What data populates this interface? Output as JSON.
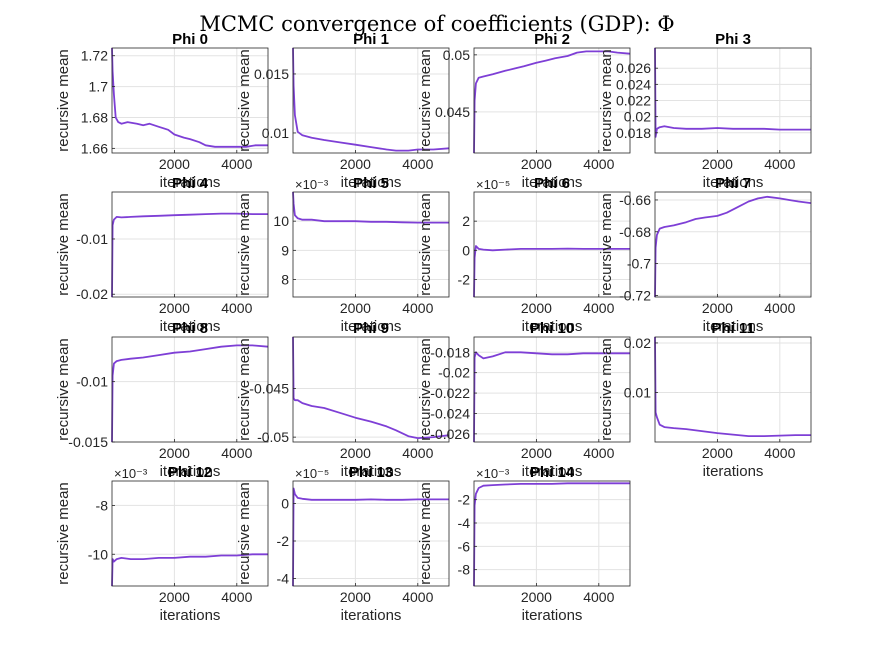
{
  "figure": {
    "title": "MCMC convergence of coefficients (GDP): Φ",
    "line_color": "#7e3fd6",
    "grid_color": "#e3e3e3",
    "axis_color": "#262626"
  },
  "chart_data": [
    {
      "type": "line",
      "title": "Phi 0",
      "xlabel": "iterations",
      "ylabel": "recursive mean",
      "xlim": [
        0,
        5000
      ],
      "ylim": [
        1.657,
        1.725
      ],
      "xticks": [
        2000,
        4000
      ],
      "xtick_labels": [
        "2000",
        "4000"
      ],
      "yticks": [
        1.66,
        1.68,
        1.7,
        1.72
      ],
      "ytick_labels": [
        "1.66",
        "1.68",
        "1.7",
        "1.72"
      ],
      "exponent": "",
      "series": [
        {
          "x": [
            0,
            20,
            60,
            120,
            200,
            300,
            500,
            800,
            1000,
            1200,
            1500,
            1800,
            2000,
            2300,
            2500,
            2800,
            3000,
            3300,
            3500,
            3800,
            4000,
            4300,
            4600,
            5000
          ],
          "y": [
            1.725,
            1.71,
            1.695,
            1.68,
            1.677,
            1.676,
            1.677,
            1.676,
            1.675,
            1.676,
            1.674,
            1.672,
            1.669,
            1.667,
            1.666,
            1.664,
            1.662,
            1.661,
            1.661,
            1.661,
            1.661,
            1.661,
            1.662,
            1.662
          ]
        }
      ]
    },
    {
      "type": "line",
      "title": "Phi 1",
      "xlabel": "iterations",
      "ylabel": "recursive mean",
      "xlim": [
        0,
        5000
      ],
      "ylim": [
        0.0083,
        0.0172
      ],
      "xticks": [
        2000,
        4000
      ],
      "xtick_labels": [
        "2000",
        "4000"
      ],
      "yticks": [
        0.01,
        0.015
      ],
      "ytick_labels": [
        "0.01",
        "0.015"
      ],
      "exponent": "",
      "series": [
        {
          "x": [
            0,
            20,
            60,
            150,
            300,
            600,
            1000,
            1500,
            2000,
            2500,
            3000,
            3300,
            3700,
            4000,
            4500,
            5000
          ],
          "y": [
            0.0172,
            0.014,
            0.0115,
            0.0101,
            0.0098,
            0.0096,
            0.0094,
            0.0092,
            0.009,
            0.0088,
            0.0086,
            0.0085,
            0.0085,
            0.0086,
            0.0086,
            0.0087
          ]
        }
      ]
    },
    {
      "type": "line",
      "title": "Phi 2",
      "xlabel": "iterations",
      "ylabel": "recursive mean",
      "xlim": [
        0,
        5000
      ],
      "ylim": [
        0.0414,
        0.0506
      ],
      "xticks": [
        2000,
        4000
      ],
      "xtick_labels": [
        "2000",
        "4000"
      ],
      "yticks": [
        0.045,
        0.05
      ],
      "ytick_labels": [
        "0.045",
        "0.05"
      ],
      "exponent": "",
      "series": [
        {
          "x": [
            0,
            20,
            60,
            150,
            300,
            600,
            1000,
            1300,
            1600,
            2000,
            2300,
            2600,
            3000,
            3300,
            3600,
            4000,
            4300,
            4600,
            5000
          ],
          "y": [
            0.0414,
            0.046,
            0.0475,
            0.048,
            0.0481,
            0.0483,
            0.0486,
            0.0488,
            0.049,
            0.0493,
            0.0495,
            0.0497,
            0.0499,
            0.0502,
            0.0503,
            0.0503,
            0.0503,
            0.0502,
            0.0501
          ]
        }
      ]
    },
    {
      "type": "line",
      "title": "Phi 3",
      "xlabel": "iterations",
      "ylabel": "recursive mean",
      "xlim": [
        0,
        5000
      ],
      "ylim": [
        0.0155,
        0.0285
      ],
      "xticks": [
        2000,
        4000
      ],
      "xtick_labels": [
        "2000",
        "4000"
      ],
      "yticks": [
        0.018,
        0.02,
        0.022,
        0.024,
        0.026
      ],
      "ytick_labels": [
        "0.018",
        "0.02",
        "0.022",
        "0.024",
        "0.026"
      ],
      "exponent": "",
      "series": [
        {
          "x": [
            0,
            20,
            60,
            150,
            300,
            600,
            1000,
            1500,
            2000,
            2500,
            3000,
            3500,
            4000,
            4500,
            5000
          ],
          "y": [
            0.0285,
            0.0175,
            0.0185,
            0.0187,
            0.0188,
            0.0186,
            0.0185,
            0.0185,
            0.0186,
            0.0185,
            0.0185,
            0.0185,
            0.0184,
            0.0184,
            0.0184
          ]
        }
      ]
    },
    {
      "type": "line",
      "title": "Phi 4",
      "xlabel": "iterations",
      "ylabel": "recursive mean",
      "xlim": [
        0,
        5000
      ],
      "ylim": [
        -0.0205,
        -0.0015
      ],
      "xticks": [
        2000,
        4000
      ],
      "xtick_labels": [
        "2000",
        "4000"
      ],
      "yticks": [
        -0.02,
        -0.01
      ],
      "ytick_labels": [
        "-0.02",
        "-0.01"
      ],
      "exponent": "",
      "series": [
        {
          "x": [
            0,
            20,
            60,
            150,
            300,
            600,
            1000,
            1500,
            2000,
            2500,
            3000,
            3500,
            4000,
            4500,
            5000
          ],
          "y": [
            -0.0205,
            -0.0075,
            -0.0065,
            -0.006,
            -0.0061,
            -0.006,
            -0.0059,
            -0.0058,
            -0.0057,
            -0.0056,
            -0.0055,
            -0.0054,
            -0.0054,
            -0.0055,
            -0.0055
          ]
        }
      ]
    },
    {
      "type": "line",
      "title": "Phi 5",
      "xlabel": "iterations",
      "ylabel": "recursive mean",
      "xlim": [
        0,
        5000
      ],
      "ylim": [
        7.4,
        11.0
      ],
      "xticks": [
        2000,
        4000
      ],
      "xtick_labels": [
        "2000",
        "4000"
      ],
      "yticks": [
        8,
        9,
        10
      ],
      "ytick_labels": [
        "8",
        "9",
        "10"
      ],
      "exponent": "×10⁻³",
      "series": [
        {
          "x": [
            0,
            20,
            60,
            150,
            300,
            600,
            1000,
            1500,
            2000,
            2500,
            3000,
            3500,
            4000,
            4500,
            5000
          ],
          "y": [
            11.0,
            10.6,
            10.2,
            10.1,
            10.05,
            10.05,
            10.0,
            10.0,
            10.0,
            9.98,
            9.98,
            9.96,
            9.95,
            9.95,
            9.95
          ]
        }
      ]
    },
    {
      "type": "line",
      "title": "Phi 6",
      "xlabel": "iterations",
      "ylabel": "recursive mean",
      "xlim": [
        0,
        5000
      ],
      "ylim": [
        -3.2,
        4.0
      ],
      "xticks": [
        2000,
        4000
      ],
      "xtick_labels": [
        "2000",
        "4000"
      ],
      "yticks": [
        -2,
        0,
        2
      ],
      "ytick_labels": [
        "-2",
        "0",
        "2"
      ],
      "exponent": "×10⁻⁵",
      "series": [
        {
          "x": [
            0,
            20,
            60,
            150,
            300,
            600,
            1000,
            1500,
            2000,
            2500,
            3000,
            3500,
            4000,
            4500,
            5000
          ],
          "y": [
            -3.2,
            -0.5,
            0.3,
            0.1,
            0.05,
            0.0,
            0.05,
            0.1,
            0.1,
            0.1,
            0.12,
            0.1,
            0.1,
            0.1,
            0.1
          ]
        }
      ]
    },
    {
      "type": "line",
      "title": "Phi 7",
      "xlabel": "iterations",
      "ylabel": "recursive mean",
      "xlim": [
        0,
        5000
      ],
      "ylim": [
        -0.721,
        -0.655
      ],
      "xticks": [
        2000,
        4000
      ],
      "xtick_labels": [
        "2000",
        "4000"
      ],
      "yticks": [
        -0.72,
        -0.7,
        -0.68,
        -0.66
      ],
      "ytick_labels": [
        "-0.72",
        "-0.7",
        "-0.68",
        "-0.66"
      ],
      "exponent": "",
      "series": [
        {
          "x": [
            0,
            20,
            60,
            150,
            300,
            600,
            1000,
            1300,
            1600,
            2000,
            2300,
            2600,
            3000,
            3300,
            3600,
            4000,
            4300,
            4600,
            5000
          ],
          "y": [
            -0.721,
            -0.69,
            -0.682,
            -0.678,
            -0.677,
            -0.676,
            -0.674,
            -0.672,
            -0.671,
            -0.67,
            -0.668,
            -0.665,
            -0.661,
            -0.659,
            -0.658,
            -0.659,
            -0.66,
            -0.661,
            -0.662
          ]
        }
      ]
    },
    {
      "type": "line",
      "title": "Phi 8",
      "xlabel": "iterations",
      "ylabel": "recursive mean",
      "xlim": [
        0,
        5000
      ],
      "ylim": [
        -0.015,
        -0.0063
      ],
      "xticks": [
        2000,
        4000
      ],
      "xtick_labels": [
        "2000",
        "4000"
      ],
      "yticks": [
        -0.015,
        -0.01
      ],
      "ytick_labels": [
        "-0.015",
        "-0.01"
      ],
      "exponent": "",
      "series": [
        {
          "x": [
            0,
            20,
            60,
            150,
            300,
            600,
            1000,
            1500,
            2000,
            2500,
            3000,
            3500,
            4000,
            4500,
            5000
          ],
          "y": [
            -0.015,
            -0.0095,
            -0.0085,
            -0.0083,
            -0.0082,
            -0.0081,
            -0.008,
            -0.0078,
            -0.0076,
            -0.0075,
            -0.0073,
            -0.0071,
            -0.007,
            -0.007,
            -0.0071
          ]
        }
      ]
    },
    {
      "type": "line",
      "title": "Phi 9",
      "xlabel": "iterations",
      "ylabel": "recursive mean",
      "xlim": [
        0,
        5000
      ],
      "ylim": [
        -0.0505,
        -0.0397
      ],
      "xticks": [
        2000,
        4000
      ],
      "xtick_labels": [
        "2000",
        "4000"
      ],
      "yticks": [
        -0.05,
        -0.045
      ],
      "ytick_labels": [
        "-0.05",
        "-0.045"
      ],
      "exponent": "",
      "series": [
        {
          "x": [
            0,
            20,
            60,
            150,
            300,
            600,
            1000,
            1500,
            2000,
            2500,
            3000,
            3300,
            3700,
            4000,
            4500,
            5000
          ],
          "y": [
            -0.0397,
            -0.046,
            -0.0462,
            -0.0462,
            -0.0465,
            -0.0468,
            -0.047,
            -0.0475,
            -0.048,
            -0.0484,
            -0.0489,
            -0.0493,
            -0.0499,
            -0.0501,
            -0.05,
            -0.0498
          ]
        }
      ]
    },
    {
      "type": "line",
      "title": "Phi 10",
      "xlabel": "iterations",
      "ylabel": "recursive mean",
      "xlim": [
        0,
        5000
      ],
      "ylim": [
        -0.0268,
        -0.0165
      ],
      "xticks": [
        2000,
        4000
      ],
      "xtick_labels": [
        "2000",
        "4000"
      ],
      "yticks": [
        -0.026,
        -0.024,
        -0.022,
        -0.02,
        -0.018
      ],
      "ytick_labels": [
        "-0.026",
        "-0.024",
        "-0.022",
        "-0.02",
        "-0.018"
      ],
      "exponent": "",
      "series": [
        {
          "x": [
            0,
            20,
            60,
            150,
            300,
            600,
            1000,
            1500,
            2000,
            2500,
            3000,
            3500,
            4000,
            4500,
            5000
          ],
          "y": [
            -0.0268,
            -0.0185,
            -0.018,
            -0.0183,
            -0.0186,
            -0.0184,
            -0.018,
            -0.018,
            -0.0181,
            -0.0182,
            -0.0182,
            -0.0181,
            -0.0181,
            -0.0181,
            -0.0181
          ]
        }
      ]
    },
    {
      "type": "line",
      "title": "Phi 11",
      "xlabel": "iterations",
      "ylabel": "recursive mean",
      "xlim": [
        0,
        5000
      ],
      "ylim": [
        0.0,
        0.0212
      ],
      "xticks": [
        2000,
        4000
      ],
      "xtick_labels": [
        "2000",
        "4000"
      ],
      "yticks": [
        0.01,
        0.02
      ],
      "ytick_labels": [
        "0.01",
        "0.02"
      ],
      "exponent": "",
      "series": [
        {
          "x": [
            0,
            20,
            60,
            150,
            300,
            600,
            1000,
            1500,
            2000,
            2500,
            3000,
            3500,
            4000,
            4500,
            5000
          ],
          "y": [
            0.0212,
            0.006,
            0.005,
            0.0035,
            0.003,
            0.0028,
            0.0026,
            0.0022,
            0.0018,
            0.0015,
            0.0012,
            0.0012,
            0.0013,
            0.0014,
            0.0014
          ]
        }
      ]
    },
    {
      "type": "line",
      "title": "Phi 12",
      "xlabel": "iterations",
      "ylabel": "recursive mean",
      "xlim": [
        0,
        5000
      ],
      "ylim": [
        -11.3,
        -7.0
      ],
      "xticks": [
        2000,
        4000
      ],
      "xtick_labels": [
        "2000",
        "4000"
      ],
      "yticks": [
        -10,
        -8
      ],
      "ytick_labels": [
        "-10",
        "-8"
      ],
      "exponent": "×10⁻³",
      "series": [
        {
          "x": [
            0,
            20,
            60,
            150,
            300,
            600,
            1000,
            1500,
            2000,
            2500,
            3000,
            3500,
            4000,
            4500,
            5000
          ],
          "y": [
            -11.3,
            -10.2,
            -10.3,
            -10.2,
            -10.15,
            -10.2,
            -10.2,
            -10.15,
            -10.15,
            -10.1,
            -10.1,
            -10.05,
            -10.05,
            -10.0,
            -10.0
          ]
        }
      ]
    },
    {
      "type": "line",
      "title": "Phi 13",
      "xlabel": "iterations",
      "ylabel": "recursive mean",
      "xlim": [
        0,
        5000
      ],
      "ylim": [
        -4.4,
        1.2
      ],
      "xticks": [
        2000,
        4000
      ],
      "xtick_labels": [
        "2000",
        "4000"
      ],
      "yticks": [
        -4,
        -2,
        0
      ],
      "ytick_labels": [
        "-4",
        "-2",
        "0"
      ],
      "exponent": "×10⁻⁵",
      "series": [
        {
          "x": [
            0,
            20,
            60,
            150,
            300,
            600,
            1000,
            1500,
            2000,
            2500,
            3000,
            3500,
            4000,
            4500,
            5000
          ],
          "y": [
            -4.4,
            0.8,
            0.5,
            0.3,
            0.25,
            0.2,
            0.2,
            0.2,
            0.2,
            0.22,
            0.2,
            0.2,
            0.22,
            0.22,
            0.22
          ]
        }
      ]
    },
    {
      "type": "line",
      "title": "Phi 14",
      "xlabel": "iterations",
      "ylabel": "recursive mean",
      "xlim": [
        0,
        5000
      ],
      "ylim": [
        -9.4,
        -0.4
      ],
      "xticks": [
        2000,
        4000
      ],
      "xtick_labels": [
        "2000",
        "4000"
      ],
      "yticks": [
        -8,
        -6,
        -4,
        -2
      ],
      "ytick_labels": [
        "-8",
        "-6",
        "-4",
        "-2"
      ],
      "exponent": "×10⁻³",
      "series": [
        {
          "x": [
            0,
            20,
            60,
            150,
            300,
            600,
            1000,
            1500,
            2000,
            2500,
            3000,
            3500,
            4000,
            4500,
            5000
          ],
          "y": [
            -9.4,
            -2.5,
            -1.5,
            -1.0,
            -0.8,
            -0.75,
            -0.7,
            -0.65,
            -0.65,
            -0.65,
            -0.6,
            -0.6,
            -0.6,
            -0.6,
            -0.6
          ]
        }
      ]
    }
  ]
}
